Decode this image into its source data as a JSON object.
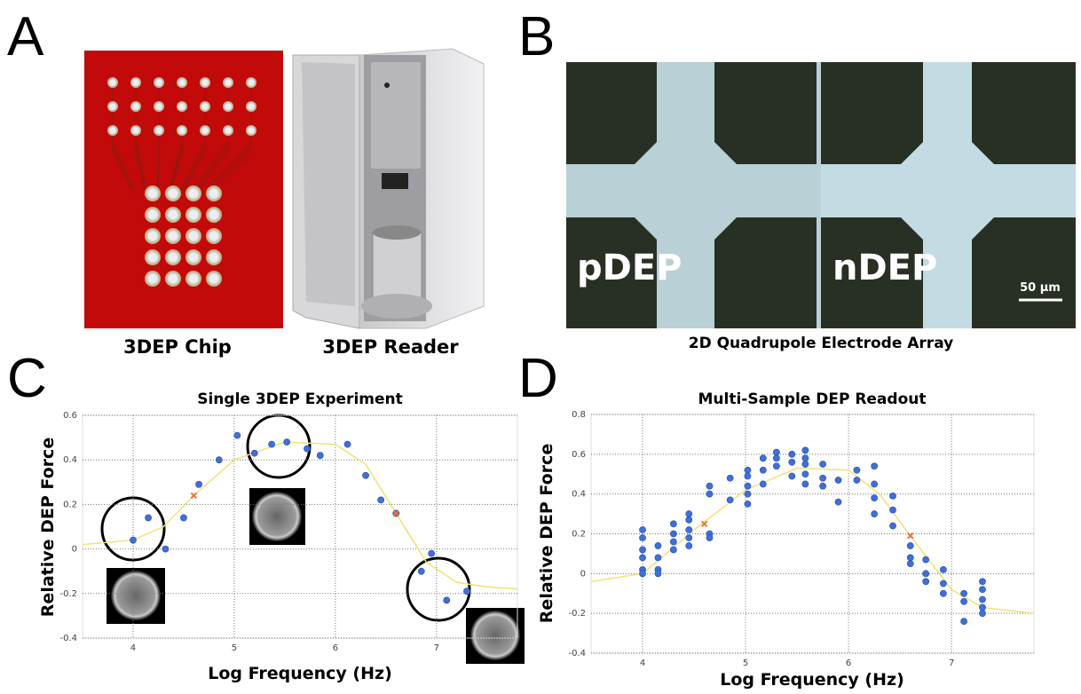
{
  "panel_labels": [
    "A",
    "B",
    "C",
    "D"
  ],
  "captions": {
    "chip": "3DEP Chip",
    "reader": "3DEP Reader",
    "array": "2D Quadrupole Electrode Array"
  },
  "micrograph": {
    "left": "pDEP",
    "right": "nDEP",
    "scale": "50 µm"
  },
  "chart_data": [
    {
      "type": "scatter",
      "title": "Single 3DEP Experiment",
      "x_label": "Log Frequency (Hz)",
      "y_label": "Relative DEP Force",
      "xlim": [
        3.5,
        7.8
      ],
      "xticks": [
        4,
        5,
        6,
        7
      ],
      "ylim": [
        -0.4,
        0.6
      ],
      "yticks": [
        -0.4,
        -0.2,
        0,
        0.2,
        0.4,
        0.6
      ],
      "grid": true,
      "series": [
        {
          "type": "line",
          "color": "#f0e27a",
          "x": [
            3.5,
            4.0,
            4.3,
            4.6,
            5.0,
            5.5,
            6.0,
            6.3,
            6.6,
            6.9,
            7.2,
            7.5,
            7.8
          ],
          "values": [
            0.02,
            0.04,
            0.1,
            0.24,
            0.4,
            0.48,
            0.47,
            0.38,
            0.16,
            -0.06,
            -0.15,
            -0.17,
            -0.18
          ]
        },
        {
          "type": "scatter",
          "color": "#3f6fd8",
          "x": [
            4.0,
            4.15,
            4.32,
            4.5,
            4.65,
            4.85,
            5.03,
            5.2,
            5.37,
            5.52,
            5.72,
            5.85,
            6.12,
            6.3,
            6.45,
            6.6,
            6.85,
            6.95,
            7.1,
            7.3
          ],
          "values": [
            0.04,
            0.14,
            0.0,
            0.14,
            0.29,
            0.4,
            0.51,
            0.43,
            0.47,
            0.48,
            0.45,
            0.42,
            0.47,
            0.33,
            0.22,
            0.16,
            -0.1,
            -0.02,
            -0.23,
            -0.19
          ]
        },
        {
          "type": "scatter",
          "marker": "x",
          "color": "#e8773a",
          "x": [
            4.6,
            6.6
          ],
          "values": [
            0.24,
            0.16
          ]
        }
      ]
    },
    {
      "type": "scatter",
      "title": "Multi-Sample DEP Readout",
      "x_label": "Log Frequency (Hz)",
      "y_label": "Relative DEP Force",
      "xlim": [
        3.5,
        7.8
      ],
      "xticks": [
        4,
        5,
        6,
        7
      ],
      "ylim": [
        -0.4,
        0.8
      ],
      "yticks": [
        -0.4,
        -0.2,
        0,
        0.2,
        0.4,
        0.6,
        0.8
      ],
      "grid": true,
      "series": [
        {
          "type": "line",
          "color": "#f0e27a",
          "x": [
            3.5,
            4.0,
            4.5,
            5.0,
            5.5,
            6.0,
            6.3,
            6.6,
            7.0,
            7.3,
            7.8
          ],
          "values": [
            -0.04,
            0.0,
            0.22,
            0.42,
            0.53,
            0.52,
            0.4,
            0.19,
            -0.08,
            -0.17,
            -0.2
          ]
        },
        {
          "type": "scatter",
          "color": "#3f6fd8",
          "x": [
            4,
            4,
            4,
            4,
            4,
            4,
            4.15,
            4.15,
            4.15,
            4.15,
            4.3,
            4.3,
            4.3,
            4.3,
            4.45,
            4.45,
            4.45,
            4.45,
            4.45,
            4.65,
            4.65,
            4.65,
            4.65,
            4.85,
            4.85,
            5.02,
            5.02,
            5.02,
            5.02,
            5.02,
            5.17,
            5.17,
            5.17,
            5.3,
            5.3,
            5.3,
            5.45,
            5.45,
            5.45,
            5.58,
            5.58,
            5.58,
            5.58,
            5.58,
            5.75,
            5.75,
            5.75,
            5.9,
            5.9,
            6.08,
            6.08,
            6.25,
            6.25,
            6.25,
            6.25,
            6.43,
            6.43,
            6.43,
            6.6,
            6.6,
            6.6,
            6.75,
            6.75,
            6.75,
            6.92,
            6.92,
            6.92,
            7.12,
            7.12,
            7.12,
            7.3,
            7.3,
            7.3,
            7.3,
            7.3
          ],
          "values": [
            0.22,
            0.18,
            0.12,
            0.08,
            0.02,
            0.0,
            0.14,
            0.08,
            0.02,
            0.0,
            0.16,
            0.2,
            0.25,
            0.12,
            0.27,
            0.22,
            0.18,
            0.14,
            0.3,
            0.44,
            0.4,
            0.2,
            0.18,
            0.48,
            0.37,
            0.52,
            0.49,
            0.44,
            0.4,
            0.35,
            0.58,
            0.52,
            0.45,
            0.61,
            0.58,
            0.54,
            0.6,
            0.56,
            0.49,
            0.62,
            0.58,
            0.55,
            0.5,
            0.45,
            0.55,
            0.48,
            0.44,
            0.47,
            0.36,
            0.52,
            0.47,
            0.54,
            0.45,
            0.38,
            0.3,
            0.39,
            0.32,
            0.24,
            0.14,
            0.08,
            0.05,
            0.07,
            0.0,
            -0.04,
            0.02,
            -0.05,
            -0.1,
            -0.1,
            -0.14,
            -0.24,
            -0.04,
            -0.08,
            -0.13,
            -0.17,
            -0.2
          ]
        },
        {
          "type": "scatter",
          "marker": "x",
          "color": "#e8773a",
          "x": [
            4.6,
            6.6
          ],
          "values": [
            0.25,
            0.19
          ]
        }
      ]
    }
  ]
}
